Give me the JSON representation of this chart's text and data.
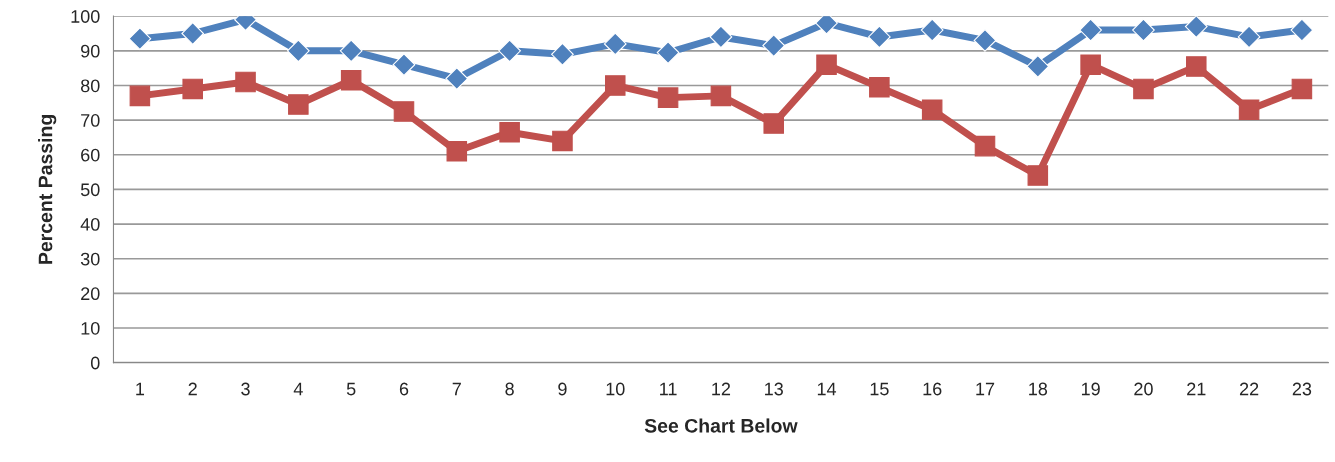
{
  "chart_data": {
    "type": "line",
    "xlabel": "See Chart Below",
    "ylabel": "Percent Passing",
    "categories": [
      "1",
      "2",
      "3",
      "4",
      "5",
      "6",
      "7",
      "8",
      "9",
      "10",
      "11",
      "12",
      "13",
      "14",
      "15",
      "16",
      "17",
      "18",
      "19",
      "20",
      "21",
      "22",
      "23"
    ],
    "series": [
      {
        "color": "#4f81bd",
        "marker": "diamond",
        "values": [
          93.5,
          95,
          99,
          90,
          90,
          86,
          82,
          90,
          89,
          92,
          89.5,
          94,
          91.5,
          98,
          94,
          96,
          93,
          85.5,
          96,
          96,
          97,
          94,
          96
        ]
      },
      {
        "color": "#c0504d",
        "marker": "square",
        "values": [
          77,
          79,
          81,
          74.5,
          81.5,
          72.5,
          61,
          66.5,
          64,
          80,
          76.5,
          77,
          69,
          86,
          79.5,
          73,
          62.5,
          54,
          86,
          79,
          85.5,
          73,
          79
        ]
      }
    ],
    "ylim": [
      0,
      100
    ],
    "yticks": [
      0,
      10,
      20,
      30,
      40,
      50,
      60,
      70,
      80,
      90,
      100
    ],
    "grid": "y",
    "legend": false,
    "line_style": "solid"
  }
}
